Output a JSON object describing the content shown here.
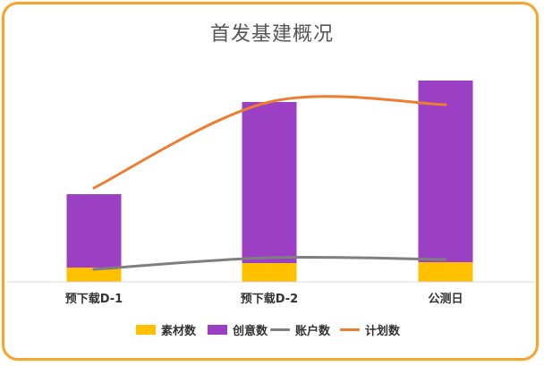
{
  "chart_data": {
    "type": "bar",
    "title": "首发基建概况",
    "categories": [
      "预下载D-1",
      "预下载D-2",
      "公测日"
    ],
    "series": [
      {
        "name": "素材数",
        "kind": "stacked-bar",
        "color": "#ffc000",
        "values": [
          16,
          21,
          22
        ]
      },
      {
        "name": "创意数",
        "kind": "stacked-bar",
        "color": "#9b3fc4",
        "values": [
          82,
          180,
          203
        ]
      },
      {
        "name": "账户数",
        "kind": "line",
        "color": "#7f7f7f",
        "values": [
          14,
          27,
          25
        ]
      },
      {
        "name": "计划数",
        "kind": "line",
        "color": "#ed7d31",
        "values": [
          105,
          201,
          198
        ]
      }
    ],
    "ylim": [
      0,
      240
    ],
    "grid": false,
    "legend_position": "bottom"
  }
}
